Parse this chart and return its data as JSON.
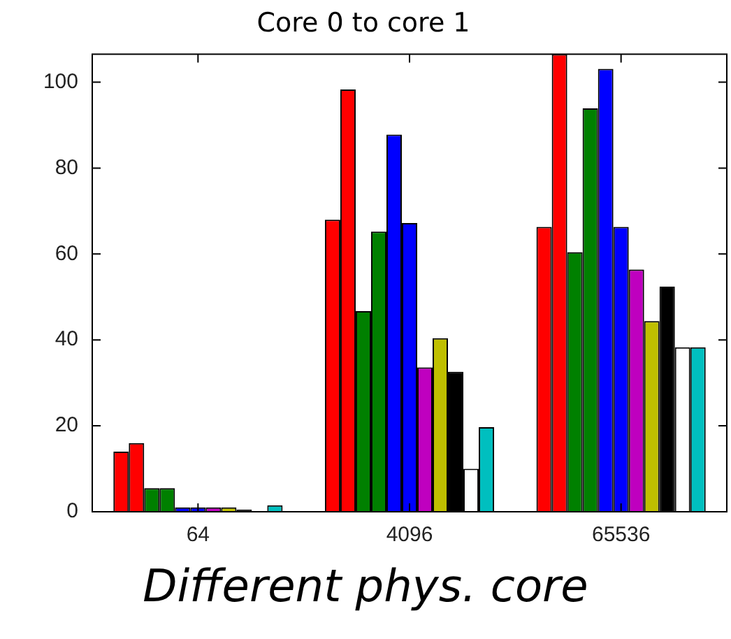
{
  "chart_data": {
    "type": "bar",
    "title": "Core 0 to core 1",
    "xlabel": "Different phys. core",
    "categories": [
      "64",
      "4096",
      "65536"
    ],
    "ylim": [
      0,
      106.5
    ],
    "yticks": [
      0,
      20,
      40,
      60,
      80,
      100
    ],
    "grid": false,
    "legend": false,
    "series": [
      {
        "color": "#ff0000",
        "values": [
          14,
          68,
          66.3
        ]
      },
      {
        "color": "#ff0000",
        "values": [
          16,
          98.3,
          106.5
        ]
      },
      {
        "color": "#008000",
        "values": [
          5.5,
          46.7,
          60.4
        ]
      },
      {
        "color": "#008000",
        "values": [
          5.5,
          65.2,
          93.9
        ]
      },
      {
        "color": "#0000ff",
        "values": [
          1,
          87.8,
          103.1
        ]
      },
      {
        "color": "#0000ff",
        "values": [
          1,
          67.2,
          66.3
        ]
      },
      {
        "color": "#bf00bf",
        "values": [
          1,
          33.6,
          56.4
        ]
      },
      {
        "color": "#bfbf00",
        "values": [
          1,
          40.4,
          44.4
        ]
      },
      {
        "color": "#000000",
        "values": [
          0.5,
          32.6,
          52.4
        ]
      },
      {
        "color": "#ffffff",
        "values": [
          0,
          10,
          38.3
        ]
      },
      {
        "color": "#00bfbf",
        "values": [
          1.5,
          19.7,
          38.3
        ]
      }
    ]
  }
}
